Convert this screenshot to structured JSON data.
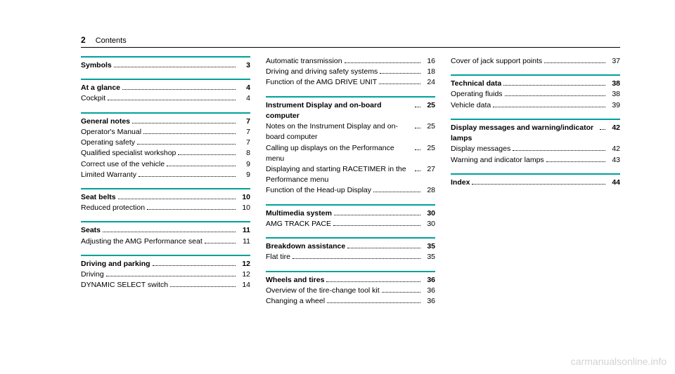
{
  "header": {
    "page_number": "2",
    "title": "Contents"
  },
  "divider_color": "#00a19a",
  "watermark": "carmanualsonline.info",
  "columns": [
    [
      {
        "entries": [
          {
            "label": "Symbols",
            "page": "3",
            "bold": true
          }
        ]
      },
      {
        "entries": [
          {
            "label": "At a glance",
            "page": "4",
            "bold": true
          },
          {
            "label": "Cockpit",
            "page": "4"
          }
        ]
      },
      {
        "entries": [
          {
            "label": "General notes",
            "page": "7",
            "bold": true
          },
          {
            "label": "Operator's Manual",
            "page": "7"
          },
          {
            "label": "Operating safety",
            "page": "7"
          },
          {
            "label": "Qualified specialist workshop",
            "page": "8"
          },
          {
            "label": "Correct use of the vehicle",
            "page": "9"
          },
          {
            "label": "Limited Warranty",
            "page": "9"
          }
        ]
      },
      {
        "entries": [
          {
            "label": "Seat belts",
            "page": "10",
            "bold": true
          },
          {
            "label": "Reduced protection",
            "page": "10"
          }
        ]
      },
      {
        "entries": [
          {
            "label": "Seats",
            "page": "11",
            "bold": true
          },
          {
            "label": "Adjusting the AMG Performance seat",
            "page": "11"
          }
        ]
      },
      {
        "entries": [
          {
            "label": "Driving and parking",
            "page": "12",
            "bold": true
          },
          {
            "label": "Driving",
            "page": "12"
          },
          {
            "label": "DYNAMIC SELECT switch",
            "page": "14"
          }
        ]
      }
    ],
    [
      {
        "no_divider": true,
        "entries": [
          {
            "label": "Automatic transmission",
            "page": "16"
          },
          {
            "label": "Driving and driving safety systems",
            "page": "18"
          },
          {
            "label": "Function of the AMG DRIVE UNIT",
            "page": "24"
          }
        ]
      },
      {
        "entries": [
          {
            "label": "Instrument Display and on-board computer",
            "page": "25",
            "bold": true
          },
          {
            "label": "Notes on the Instrument Display and on-board computer",
            "page": "25"
          },
          {
            "label": "Calling up displays on the Performance menu",
            "page": "25"
          },
          {
            "label": "Displaying and starting RACETIMER in the Performance menu",
            "page": "27"
          },
          {
            "label": "Function of the Head-up Display",
            "page": "28"
          }
        ]
      },
      {
        "entries": [
          {
            "label": "Multimedia system",
            "page": "30",
            "bold": true
          },
          {
            "label": "AMG TRACK PACE",
            "page": "30"
          }
        ]
      },
      {
        "entries": [
          {
            "label": "Breakdown assistance",
            "page": "35",
            "bold": true
          },
          {
            "label": "Flat tire",
            "page": "35"
          }
        ]
      },
      {
        "entries": [
          {
            "label": "Wheels and tires",
            "page": "36",
            "bold": true
          },
          {
            "label": "Overview of the tire-change tool kit",
            "page": "36"
          },
          {
            "label": "Changing a wheel",
            "page": "36"
          }
        ]
      }
    ],
    [
      {
        "no_divider": true,
        "entries": [
          {
            "label": "Cover of jack support points",
            "page": "37"
          }
        ]
      },
      {
        "entries": [
          {
            "label": "Technical data",
            "page": "38",
            "bold": true
          },
          {
            "label": "Operating fluids",
            "page": "38"
          },
          {
            "label": "Vehicle data",
            "page": "39"
          }
        ]
      },
      {
        "entries": [
          {
            "label": "Display messages and warning/indicator lamps",
            "page": "42",
            "bold": true
          },
          {
            "label": "Display messages",
            "page": "42"
          },
          {
            "label": "Warning and indicator lamps",
            "page": "43"
          }
        ]
      },
      {
        "entries": [
          {
            "label": "Index",
            "page": "44",
            "bold": true
          }
        ]
      }
    ]
  ]
}
